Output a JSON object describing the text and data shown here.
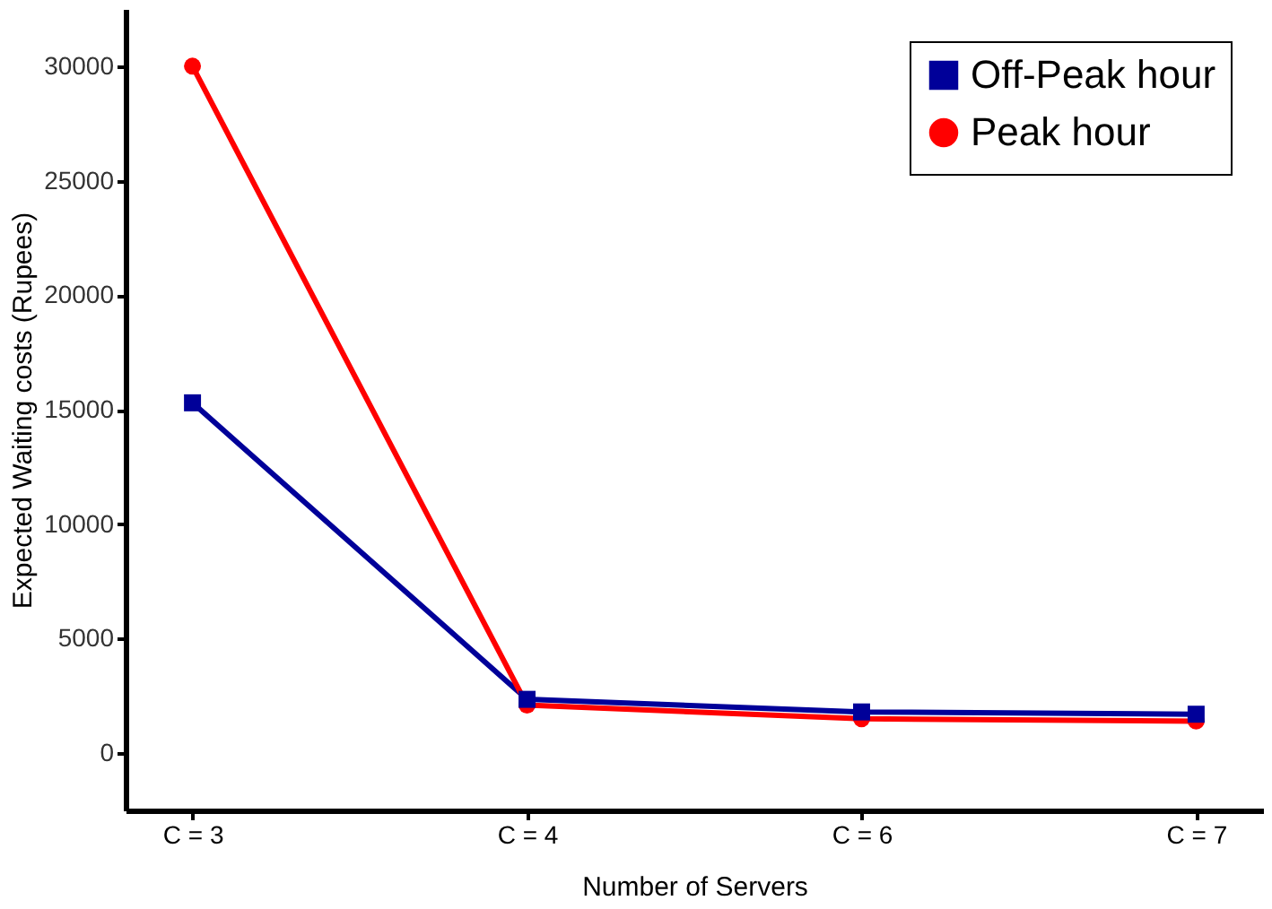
{
  "chart_data": {
    "type": "line",
    "xlabel": "Number of Servers",
    "ylabel": "Expected Waiting costs (Rupees)",
    "categories": [
      "C = 3",
      "C = 4",
      "C = 6",
      "C = 7"
    ],
    "series": [
      {
        "name": "Off-Peak hour",
        "color": "#000099",
        "marker": "square",
        "values": [
          15300,
          2350,
          1800,
          1700
        ]
      },
      {
        "name": "Peak hour",
        "color": "#ff0000",
        "marker": "circle",
        "values": [
          30000,
          2100,
          1500,
          1400
        ]
      }
    ],
    "ylim": [
      -2500,
      32500
    ],
    "yticks": [
      0,
      5000,
      10000,
      15000,
      20000,
      25000,
      30000
    ],
    "grid": false,
    "legend": "top right",
    "line_style": "solid"
  }
}
